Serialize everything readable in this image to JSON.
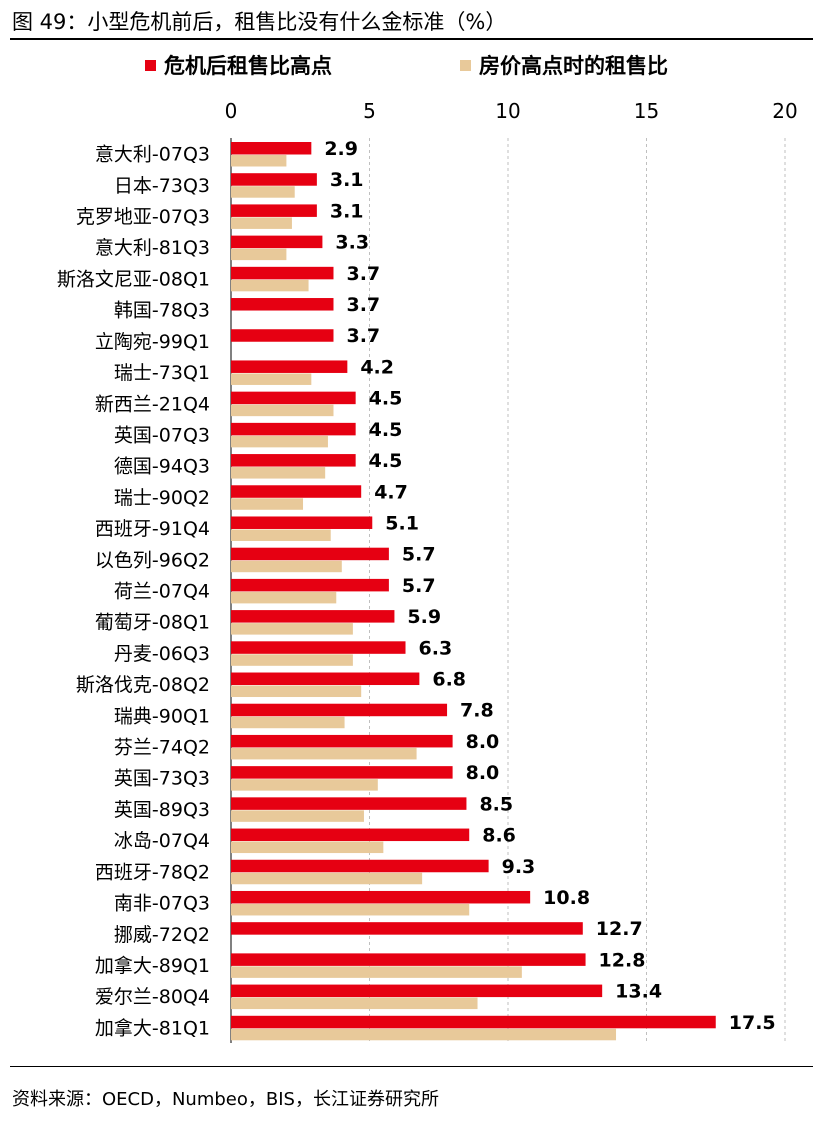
{
  "title": "图 49：小型危机前后，租售比没有什么金标准（%）",
  "source": "资料来源：OECD，Numbeo，BIS，长江证券研究所",
  "colors": {
    "series_after": "#E60012",
    "series_peak": "#E8C99A"
  },
  "chart_data": {
    "type": "bar",
    "orientation": "horizontal",
    "xlim": [
      0,
      20
    ],
    "xticks": [
      0,
      5,
      10,
      15,
      20
    ],
    "xaxis_position": "top",
    "grid": "vertical dashed",
    "legend_position": "top",
    "categories": [
      "意大利-07Q3",
      "日本-73Q3",
      "克罗地亚-07Q3",
      "意大利-81Q3",
      "斯洛文尼亚-08Q1",
      "韩国-78Q3",
      "立陶宛-99Q1",
      "瑞士-73Q1",
      "新西兰-21Q4",
      "英国-07Q3",
      "德国-94Q3",
      "瑞士-90Q2",
      "西班牙-91Q4",
      "以色列-96Q2",
      "荷兰-07Q4",
      "葡萄牙-08Q1",
      "丹麦-06Q3",
      "斯洛伐克-08Q2",
      "瑞典-90Q1",
      "芬兰-74Q2",
      "英国-73Q3",
      "英国-89Q3",
      "冰岛-07Q4",
      "西班牙-78Q2",
      "南非-07Q3",
      "挪威-72Q2",
      "加拿大-89Q1",
      "爱尔兰-80Q4",
      "加拿大-81Q1"
    ],
    "series": [
      {
        "name": "危机后租售比高点",
        "values": [
          2.9,
          3.1,
          3.1,
          3.3,
          3.7,
          3.7,
          3.7,
          4.2,
          4.5,
          4.5,
          4.5,
          4.7,
          5.1,
          5.7,
          5.7,
          5.9,
          6.3,
          6.8,
          7.8,
          8.0,
          8.0,
          8.5,
          8.6,
          9.3,
          10.8,
          12.7,
          12.8,
          13.4,
          17.5
        ],
        "labels": [
          "2.9",
          "3.1",
          "3.1",
          "3.3",
          "3.7",
          "3.7",
          "3.7",
          "4.2",
          "4.5",
          "4.5",
          "4.5",
          "4.7",
          "5.1",
          "5.7",
          "5.7",
          "5.9",
          "6.3",
          "6.8",
          "7.8",
          "8.0",
          "8.0",
          "8.5",
          "8.6",
          "9.3",
          "10.8",
          "12.7",
          "12.8",
          "13.4",
          "17.5"
        ]
      },
      {
        "name": "房价高点时的租售比",
        "values": [
          2.0,
          2.3,
          2.2,
          2.0,
          2.8,
          null,
          null,
          2.9,
          3.7,
          3.5,
          3.4,
          2.6,
          3.6,
          4.0,
          3.8,
          4.4,
          4.4,
          4.7,
          4.1,
          6.7,
          5.3,
          4.8,
          5.5,
          6.9,
          8.6,
          null,
          10.5,
          8.9,
          13.9
        ]
      }
    ]
  }
}
